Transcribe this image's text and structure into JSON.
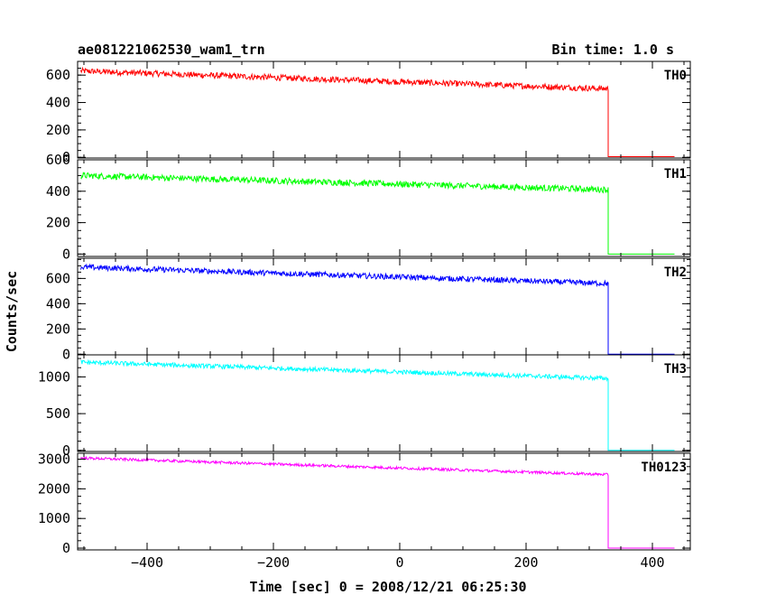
{
  "title": "ae081221062530_wam1_trn",
  "bin_time": "Bin time: 1.0 s",
  "xlabel": "Time [sec] 0 = 2008/12/21 06:25:30",
  "ylabel": "Counts/sec",
  "chart_data": {
    "type": "line",
    "xlim": [
      -510,
      460
    ],
    "x_ticks": [
      -400,
      -200,
      0,
      200,
      400
    ],
    "x_tick_labels": [
      "−400",
      "−200",
      "0",
      "200",
      "400"
    ],
    "drop_time": 330,
    "data_end": 435,
    "data_start": -505,
    "series": [
      {
        "name": "TH0",
        "color": "#ff0000",
        "ylim": [
          -5,
          700
        ],
        "y_ticks": [
          0,
          200,
          400,
          600
        ],
        "y_tick_labels": [
          "0",
          "200",
          "400",
          "600"
        ],
        "start_value": 630,
        "end_value": 500,
        "after_value": 5,
        "noise": 22
      },
      {
        "name": "TH1",
        "color": "#00ff00",
        "ylim": [
          -15,
          600
        ],
        "y_ticks": [
          0,
          200,
          400,
          600
        ],
        "y_tick_labels": [
          "0",
          "200",
          "400",
          "600"
        ],
        "start_value": 500,
        "end_value": 410,
        "after_value": 0,
        "noise": 20
      },
      {
        "name": "TH2",
        "color": "#0000ff",
        "ylim": [
          -5,
          760
        ],
        "y_ticks": [
          0,
          200,
          400,
          600
        ],
        "y_tick_labels": [
          "0",
          "200",
          "400",
          "600"
        ],
        "start_value": 690,
        "end_value": 560,
        "after_value": 0,
        "noise": 22
      },
      {
        "name": "TH3",
        "color": "#00ffff",
        "ylim": [
          -15,
          1300
        ],
        "y_ticks": [
          0,
          500,
          1000
        ],
        "y_tick_labels": [
          "0",
          "500",
          "1000"
        ],
        "start_value": 1200,
        "end_value": 980,
        "after_value": 0,
        "noise": 30
      },
      {
        "name": "TH0123",
        "color": "#ff00ff",
        "ylim": [
          -60,
          3200
        ],
        "y_ticks": [
          0,
          1000,
          2000,
          3000
        ],
        "y_tick_labels": [
          "0",
          "1000",
          "2000",
          "3000"
        ],
        "start_value": 3040,
        "end_value": 2480,
        "after_value": 0,
        "noise": 45
      }
    ]
  }
}
